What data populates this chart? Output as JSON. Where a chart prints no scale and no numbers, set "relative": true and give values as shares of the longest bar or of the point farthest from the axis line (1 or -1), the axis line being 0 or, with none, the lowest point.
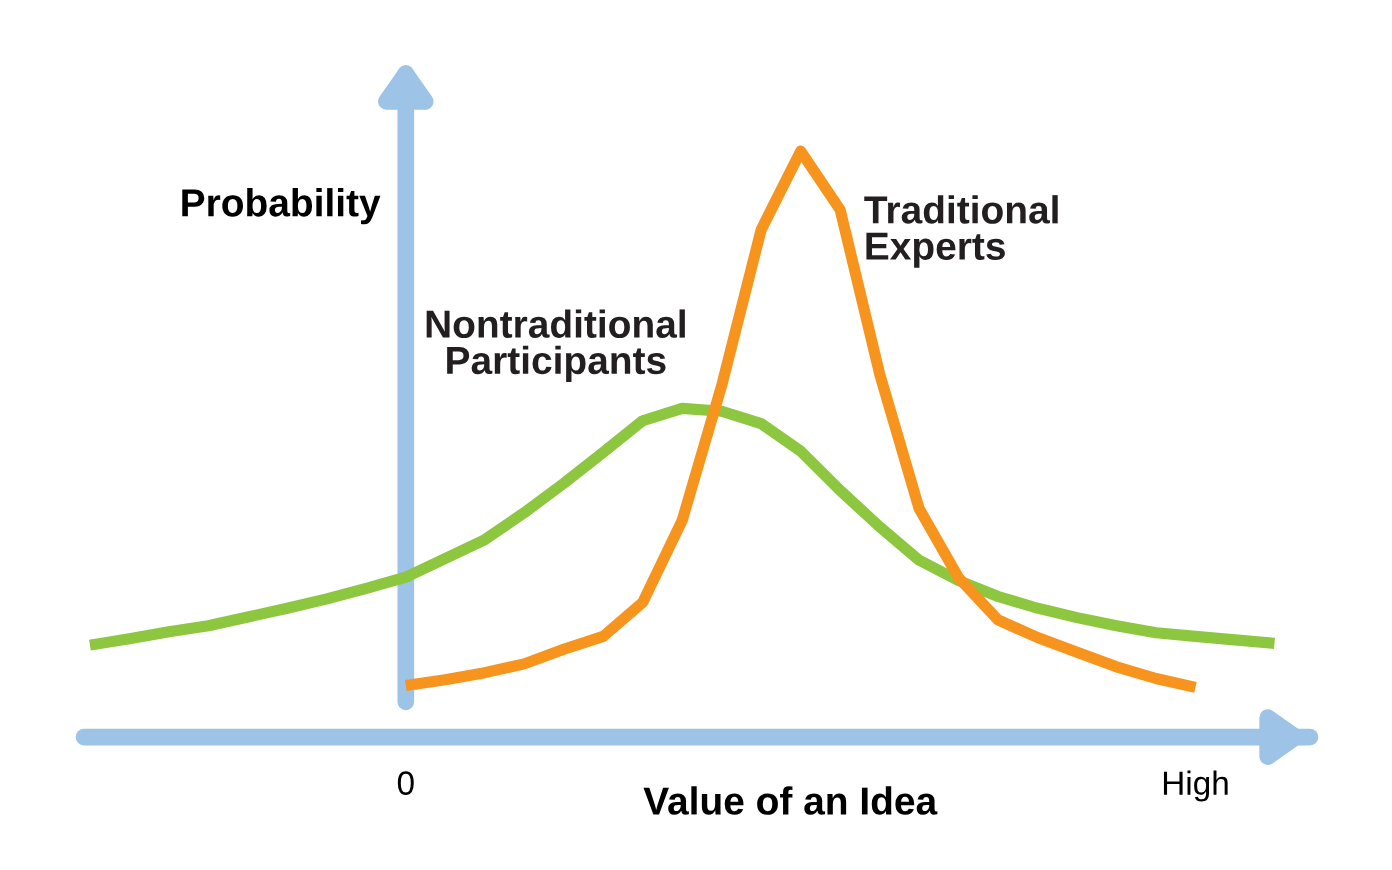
{
  "chart_data": {
    "type": "line",
    "relative": true,
    "xlabel": "Value of an Idea",
    "ylabel": "Probability",
    "categories": [
      null,
      null,
      null,
      null,
      null,
      null,
      null,
      null,
      "0",
      null,
      null,
      null,
      null,
      null,
      null,
      null,
      null,
      null,
      null,
      null,
      null,
      null,
      null,
      null,
      null,
      null,
      null,
      null,
      "High",
      null,
      null
    ],
    "series": [
      {
        "name": "Nontraditional\nParticipants",
        "color": "#8dc63f",
        "values": [
          0.157,
          0.168,
          0.18,
          0.19,
          0.205,
          0.22,
          0.236,
          0.254,
          0.273,
          0.305,
          0.337,
          0.383,
          0.433,
          0.486,
          0.54,
          0.561,
          0.556,
          0.535,
          0.488,
          0.421,
          0.359,
          0.302,
          0.267,
          0.24,
          0.22,
          0.204,
          0.19,
          0.178,
          0.172,
          0.166,
          0.16
        ]
      },
      {
        "name": "Traditional\nExperts",
        "color": "#f7941d",
        "values": [
          null,
          null,
          null,
          null,
          null,
          null,
          null,
          null,
          0.088,
          0.098,
          0.11,
          0.125,
          0.15,
          0.172,
          0.23,
          0.37,
          0.6,
          0.866,
          1,
          0.9,
          0.62,
          0.39,
          0.272,
          0.2,
          0.17,
          0.145,
          0.12,
          0.1,
          0.085,
          null,
          null
        ]
      }
    ]
  }
}
